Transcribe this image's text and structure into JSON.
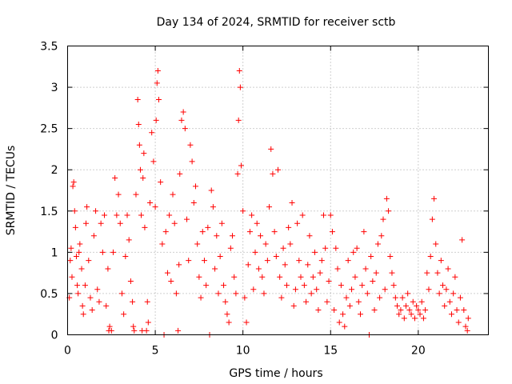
{
  "chart_data": {
    "type": "scatter",
    "title": "Day 134 of 2024, SRMTID for receiver sctb",
    "xlabel": "GPS time / hours",
    "ylabel": "SRMTID / TECUs",
    "xlim": [
      0,
      24
    ],
    "ylim": [
      0,
      3.5
    ],
    "xticks": [
      0,
      5,
      10,
      15,
      20
    ],
    "xtick_labels": [
      "0",
      "5",
      "10",
      "15",
      "20"
    ],
    "yticks": [
      0,
      0.5,
      1,
      1.5,
      2,
      2.5,
      3,
      3.5
    ],
    "ytick_labels": [
      "0",
      "0.5",
      "1",
      "1.5",
      "2",
      "2.5",
      "3",
      "3.5"
    ],
    "grid": true,
    "marker": "+",
    "color": "#ff0000",
    "series": [
      {
        "name": "SRMTID",
        "points": [
          [
            0.1,
            0.45
          ],
          [
            0.15,
            0.9
          ],
          [
            0.2,
            1.05
          ],
          [
            0.25,
            0.7
          ],
          [
            0.3,
            1.8
          ],
          [
            0.35,
            1.85
          ],
          [
            0.4,
            1.5
          ],
          [
            0.45,
            1.3
          ],
          [
            0.5,
            0.95
          ],
          [
            0.55,
            0.6
          ],
          [
            0.6,
            0.5
          ],
          [
            0.65,
            1.0
          ],
          [
            0.7,
            1.1
          ],
          [
            0.8,
            0.8
          ],
          [
            0.85,
            0.35
          ],
          [
            0.9,
            0.25
          ],
          [
            1.0,
            0.6
          ],
          [
            1.05,
            1.35
          ],
          [
            1.1,
            1.55
          ],
          [
            1.2,
            0.9
          ],
          [
            1.3,
            0.45
          ],
          [
            1.4,
            0.3
          ],
          [
            1.5,
            1.2
          ],
          [
            1.6,
            1.5
          ],
          [
            1.7,
            0.55
          ],
          [
            1.8,
            0.4
          ],
          [
            1.9,
            1.35
          ],
          [
            2.0,
            1.0
          ],
          [
            2.1,
            1.45
          ],
          [
            2.2,
            0.35
          ],
          [
            2.3,
            0.8
          ],
          [
            2.35,
            0.05
          ],
          [
            2.4,
            0.1
          ],
          [
            2.5,
            0.05
          ],
          [
            2.6,
            1.0
          ],
          [
            2.7,
            1.9
          ],
          [
            2.8,
            1.45
          ],
          [
            2.9,
            1.7
          ],
          [
            3.0,
            1.35
          ],
          [
            3.1,
            0.5
          ],
          [
            3.2,
            0.25
          ],
          [
            3.3,
            0.95
          ],
          [
            3.4,
            1.45
          ],
          [
            3.5,
            1.15
          ],
          [
            3.6,
            0.65
          ],
          [
            3.7,
            0.4
          ],
          [
            3.75,
            0.1
          ],
          [
            3.8,
            0.05
          ],
          [
            3.9,
            1.7
          ],
          [
            4.0,
            2.85
          ],
          [
            4.05,
            2.55
          ],
          [
            4.1,
            2.3
          ],
          [
            4.15,
            2.0
          ],
          [
            4.2,
            1.45
          ],
          [
            4.25,
            0.05
          ],
          [
            4.3,
            1.9
          ],
          [
            4.35,
            2.2
          ],
          [
            4.4,
            1.3
          ],
          [
            4.5,
            0.05
          ],
          [
            4.55,
            0.4
          ],
          [
            4.6,
            0.15
          ],
          [
            4.7,
            1.6
          ],
          [
            4.8,
            2.45
          ],
          [
            4.9,
            2.1
          ],
          [
            5.0,
            1.55
          ],
          [
            5.05,
            2.6
          ],
          [
            5.1,
            3.05
          ],
          [
            5.15,
            3.2
          ],
          [
            5.2,
            2.85
          ],
          [
            5.3,
            1.85
          ],
          [
            5.4,
            1.1
          ],
          [
            5.5,
            0.0
          ],
          [
            5.6,
            1.25
          ],
          [
            5.7,
            0.75
          ],
          [
            5.8,
            1.45
          ],
          [
            5.9,
            0.65
          ],
          [
            6.0,
            1.7
          ],
          [
            6.1,
            1.35
          ],
          [
            6.2,
            0.5
          ],
          [
            6.3,
            0.05
          ],
          [
            6.35,
            0.85
          ],
          [
            6.4,
            1.95
          ],
          [
            6.5,
            2.6
          ],
          [
            6.6,
            2.7
          ],
          [
            6.7,
            2.5
          ],
          [
            6.8,
            1.4
          ],
          [
            6.9,
            0.9
          ],
          [
            7.0,
            2.3
          ],
          [
            7.1,
            2.1
          ],
          [
            7.2,
            1.6
          ],
          [
            7.3,
            1.8
          ],
          [
            7.4,
            1.1
          ],
          [
            7.5,
            0.7
          ],
          [
            7.6,
            0.45
          ],
          [
            7.7,
            1.25
          ],
          [
            7.8,
            0.9
          ],
          [
            7.9,
            0.6
          ],
          [
            8.0,
            1.3
          ],
          [
            8.1,
            0.0
          ],
          [
            8.2,
            1.75
          ],
          [
            8.3,
            1.55
          ],
          [
            8.4,
            0.8
          ],
          [
            8.5,
            1.2
          ],
          [
            8.6,
            0.5
          ],
          [
            8.7,
            0.95
          ],
          [
            8.8,
            1.35
          ],
          [
            8.9,
            0.6
          ],
          [
            9.0,
            0.4
          ],
          [
            9.1,
            0.25
          ],
          [
            9.2,
            0.15
          ],
          [
            9.3,
            1.05
          ],
          [
            9.4,
            1.2
          ],
          [
            9.5,
            0.7
          ],
          [
            9.6,
            0.5
          ],
          [
            9.7,
            1.95
          ],
          [
            9.75,
            2.6
          ],
          [
            9.8,
            3.2
          ],
          [
            9.85,
            3.0
          ],
          [
            9.9,
            2.05
          ],
          [
            10.0,
            1.5
          ],
          [
            10.1,
            0.45
          ],
          [
            10.2,
            0.15
          ],
          [
            10.3,
            0.85
          ],
          [
            10.4,
            1.25
          ],
          [
            10.5,
            1.45
          ],
          [
            10.6,
            0.55
          ],
          [
            10.7,
            1.0
          ],
          [
            10.8,
            1.35
          ],
          [
            10.9,
            0.8
          ],
          [
            11.0,
            1.2
          ],
          [
            11.1,
            0.7
          ],
          [
            11.2,
            0.5
          ],
          [
            11.3,
            1.1
          ],
          [
            11.4,
            0.9
          ],
          [
            11.5,
            1.55
          ],
          [
            11.6,
            2.25
          ],
          [
            11.7,
            1.95
          ],
          [
            11.8,
            1.25
          ],
          [
            11.9,
            0.95
          ],
          [
            12.0,
            2.0
          ],
          [
            12.1,
            0.7
          ],
          [
            12.2,
            0.45
          ],
          [
            12.3,
            1.05
          ],
          [
            12.4,
            0.85
          ],
          [
            12.5,
            0.6
          ],
          [
            12.6,
            1.3
          ],
          [
            12.7,
            1.1
          ],
          [
            12.8,
            1.6
          ],
          [
            12.9,
            0.35
          ],
          [
            13.0,
            0.55
          ],
          [
            13.1,
            1.35
          ],
          [
            13.2,
            0.9
          ],
          [
            13.3,
            0.7
          ],
          [
            13.4,
            1.45
          ],
          [
            13.5,
            0.6
          ],
          [
            13.6,
            0.4
          ],
          [
            13.7,
            0.85
          ],
          [
            13.8,
            1.2
          ],
          [
            13.9,
            0.5
          ],
          [
            14.0,
            0.7
          ],
          [
            14.1,
            1.0
          ],
          [
            14.2,
            0.55
          ],
          [
            14.3,
            0.3
          ],
          [
            14.4,
            0.75
          ],
          [
            14.5,
            0.9
          ],
          [
            14.6,
            1.45
          ],
          [
            14.7,
            1.05
          ],
          [
            14.8,
            0.4
          ],
          [
            14.9,
            0.65
          ],
          [
            15.0,
            1.45
          ],
          [
            15.1,
            1.25
          ],
          [
            15.2,
            0.3
          ],
          [
            15.3,
            1.05
          ],
          [
            15.4,
            0.8
          ],
          [
            15.5,
            0.15
          ],
          [
            15.6,
            0.6
          ],
          [
            15.7,
            0.25
          ],
          [
            15.8,
            0.1
          ],
          [
            15.9,
            0.45
          ],
          [
            16.0,
            0.9
          ],
          [
            16.1,
            0.35
          ],
          [
            16.2,
            0.55
          ],
          [
            16.3,
            1.0
          ],
          [
            16.4,
            0.7
          ],
          [
            16.5,
            1.05
          ],
          [
            16.6,
            0.4
          ],
          [
            16.7,
            0.25
          ],
          [
            16.8,
            0.6
          ],
          [
            16.9,
            1.25
          ],
          [
            17.0,
            0.8
          ],
          [
            17.1,
            0.5
          ],
          [
            17.2,
            0.0
          ],
          [
            17.3,
            0.95
          ],
          [
            17.4,
            0.65
          ],
          [
            17.5,
            0.3
          ],
          [
            17.6,
            0.75
          ],
          [
            17.7,
            1.1
          ],
          [
            17.8,
            0.45
          ],
          [
            17.9,
            1.2
          ],
          [
            18.0,
            1.4
          ],
          [
            18.1,
            0.55
          ],
          [
            18.2,
            1.65
          ],
          [
            18.3,
            1.5
          ],
          [
            18.4,
            0.95
          ],
          [
            18.5,
            0.75
          ],
          [
            18.6,
            0.6
          ],
          [
            18.7,
            0.45
          ],
          [
            18.8,
            0.35
          ],
          [
            18.9,
            0.25
          ],
          [
            19.0,
            0.3
          ],
          [
            19.1,
            0.45
          ],
          [
            19.2,
            0.2
          ],
          [
            19.3,
            0.35
          ],
          [
            19.4,
            0.5
          ],
          [
            19.5,
            0.3
          ],
          [
            19.6,
            0.25
          ],
          [
            19.7,
            0.4
          ],
          [
            19.8,
            0.2
          ],
          [
            19.9,
            0.35
          ],
          [
            20.0,
            0.3
          ],
          [
            20.1,
            0.25
          ],
          [
            20.2,
            0.4
          ],
          [
            20.3,
            0.2
          ],
          [
            20.4,
            0.3
          ],
          [
            20.5,
            0.75
          ],
          [
            20.6,
            0.55
          ],
          [
            20.7,
            0.95
          ],
          [
            20.8,
            1.4
          ],
          [
            20.9,
            1.65
          ],
          [
            21.0,
            1.1
          ],
          [
            21.1,
            0.75
          ],
          [
            21.2,
            0.5
          ],
          [
            21.3,
            0.9
          ],
          [
            21.4,
            0.6
          ],
          [
            21.5,
            0.35
          ],
          [
            21.6,
            0.55
          ],
          [
            21.7,
            0.8
          ],
          [
            21.8,
            0.4
          ],
          [
            21.9,
            0.25
          ],
          [
            22.0,
            0.5
          ],
          [
            22.1,
            0.7
          ],
          [
            22.2,
            0.3
          ],
          [
            22.3,
            0.15
          ],
          [
            22.4,
            0.45
          ],
          [
            22.5,
            1.15
          ],
          [
            22.6,
            0.3
          ],
          [
            22.7,
            0.1
          ],
          [
            22.8,
            0.05
          ],
          [
            22.85,
            0.2
          ]
        ]
      }
    ]
  }
}
